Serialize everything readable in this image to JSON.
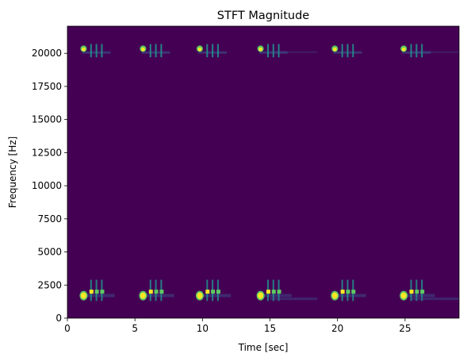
{
  "chart_data": {
    "type": "heatmap",
    "title": "STFT Magnitude",
    "xlabel": "Time [sec]",
    "ylabel": "Frequency [Hz]",
    "xlim": [
      0,
      29
    ],
    "ylim": [
      0,
      22050
    ],
    "xticks": [
      0,
      5,
      10,
      15,
      20,
      25
    ],
    "yticks": [
      0,
      2500,
      5000,
      7500,
      10000,
      12500,
      15000,
      17500,
      20000
    ],
    "grid": false,
    "legend": "none",
    "colormap": "viridis",
    "colors": {
      "background": "#440154",
      "low": "#3b528b",
      "mid": "#21918c",
      "high": "#5ec962",
      "peak": "#fde725"
    },
    "events_time_sec": [
      1.2,
      5.6,
      9.8,
      14.3,
      19.8,
      24.9
    ],
    "bands_hz": {
      "low_band": [
        1300,
        2800
      ],
      "high_band": [
        19700,
        20600
      ]
    },
    "tail_events_time_sec": [
      15.0,
      25.5
    ]
  }
}
